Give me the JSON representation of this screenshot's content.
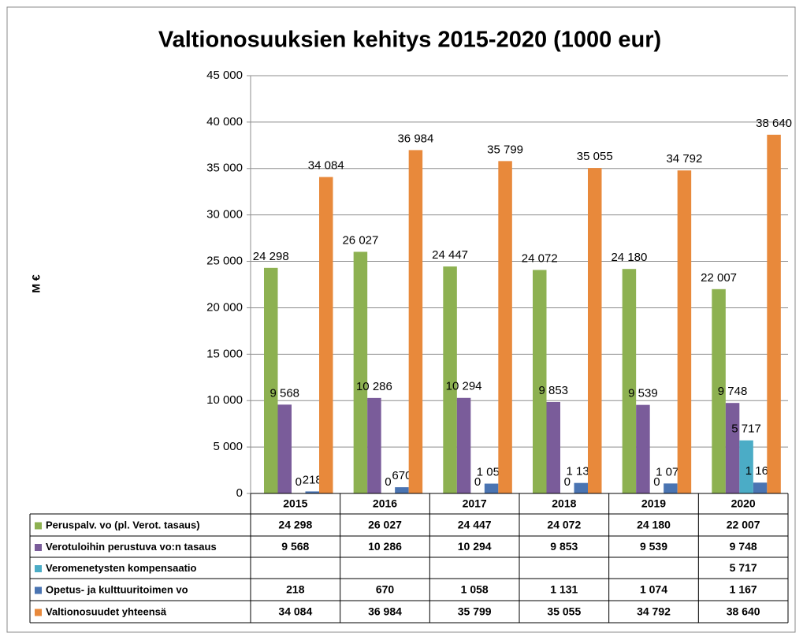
{
  "chart_data": {
    "type": "bar",
    "title": "Valtionosuuksien kehitys 2015-2020 (1000 eur)",
    "y_label": "M €",
    "categories": [
      "2015",
      "2016",
      "2017",
      "2018",
      "2019",
      "2020"
    ],
    "series": [
      {
        "name": "Peruspalv. vo (pl.  Verot. tasaus)",
        "color": "#8db151",
        "values": [
          24298,
          26027,
          24447,
          24072,
          24180,
          22007
        ],
        "value_labels": [
          "24 298",
          "26 027",
          "24 447",
          "24 072",
          "24 180",
          "22 007"
        ]
      },
      {
        "name": "Verotuloihin perustuva vo:n tasaus",
        "color": "#7a5c9a",
        "values": [
          9568,
          10286,
          10294,
          9853,
          9539,
          9748
        ],
        "value_labels": [
          "9 568",
          "10 286",
          "10 294",
          "9 853",
          "9 539",
          "9 748"
        ]
      },
      {
        "name": "Veromenetysten kompensaatio",
        "color": "#4bacc6",
        "values": [
          0,
          0,
          0,
          0,
          0,
          5717
        ],
        "value_labels": [
          "0",
          "0",
          "0",
          "0",
          "0",
          "5 717"
        ]
      },
      {
        "name": "Opetus- ja kulttuuritoimen vo",
        "color": "#4a74b2",
        "values": [
          218,
          670,
          1058,
          1131,
          1074,
          1167
        ],
        "value_labels": [
          "218",
          "670",
          "1 058",
          "1 131",
          "1 074",
          "1 167"
        ]
      },
      {
        "name": "Valtionosuudet yhteensä",
        "color": "#e8893b",
        "values": [
          34084,
          36984,
          35799,
          35055,
          34792,
          38640
        ],
        "value_labels": [
          "34 084",
          "36 984",
          "35 799",
          "35 055",
          "34 792",
          "38 640"
        ]
      }
    ],
    "ylim": [
      0,
      45000
    ],
    "yticks": [
      0,
      {
        "value": 5000,
        "label": "5 000"
      },
      {
        "value": 10000,
        "label": "10 000"
      },
      {
        "value": 15000,
        "label": "15 000"
      },
      {
        "value": 20000,
        "label": "20 000"
      },
      {
        "value": 25000,
        "label": "25 000"
      },
      {
        "value": 30000,
        "label": "30 000"
      },
      {
        "value": 35000,
        "label": "35 000"
      },
      {
        "value": 40000,
        "label": "40 000"
      },
      {
        "value": 45000,
        "label": "45 000"
      }
    ],
    "grid": true
  }
}
